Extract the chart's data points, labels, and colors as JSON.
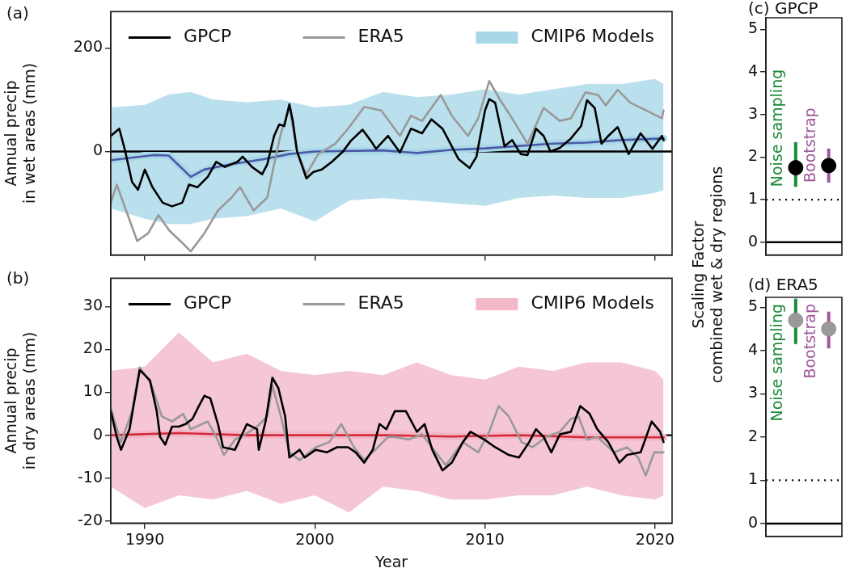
{
  "chart_data": [
    {
      "type": "line",
      "title": "(a)",
      "ylabel": "Annual precip\nin wet areas (mm)",
      "xlim": [
        1988,
        2021
      ],
      "xticks": [
        1990,
        2000,
        2010,
        2020
      ],
      "ylim": [
        -200,
        270
      ],
      "yticks": [
        0,
        200
      ],
      "tick_labels": "y",
      "grid": false,
      "legend": "top",
      "ref_lines": [
        {
          "axis": "y",
          "value": 0,
          "color": "#000000"
        }
      ],
      "series": [
        {
          "name": "GPCP",
          "color": "#000000",
          "x": [
            1988.0,
            1988.5,
            1988.85,
            1989.25,
            1989.6,
            1990.0,
            1990.45,
            1991.05,
            1991.6,
            1992.2,
            1992.6,
            1993.1,
            1993.7,
            1994.2,
            1994.7,
            1995.45,
            1995.75,
            1996.3,
            1996.9,
            1997.2,
            1997.6,
            1997.9,
            1998.2,
            1998.5,
            1998.7,
            1998.95,
            1999.5,
            1999.9,
            2000.4,
            2001.0,
            2001.65,
            2002.1,
            2002.8,
            2003.3,
            2003.6,
            2004.3,
            2005.0,
            2005.65,
            2006.3,
            2006.85,
            2007.5,
            2008.05,
            2008.45,
            2009.1,
            2009.5,
            2010.0,
            2010.25,
            2010.6,
            2011.15,
            2011.6,
            2012.1,
            2012.5,
            2013.0,
            2013.45,
            2013.85,
            2014.4,
            2015.05,
            2015.65,
            2016.0,
            2016.45,
            2016.85,
            2017.25,
            2017.8,
            2018.45,
            2019.15,
            2019.85,
            2020.4,
            2020.5
          ],
          "values": [
            30,
            44,
            0,
            -59,
            -74,
            -35,
            -69,
            -99,
            -106,
            -99,
            -64,
            -69,
            -49,
            -20,
            -30,
            -20,
            -10,
            -30,
            -44,
            -25,
            30,
            52,
            49,
            91,
            59,
            0,
            -52,
            -40,
            -35,
            -20,
            0,
            20,
            42,
            20,
            5,
            30,
            -2,
            44,
            35,
            62,
            44,
            10,
            -15,
            -32,
            -10,
            79,
            101,
            94,
            10,
            22,
            -5,
            -7,
            44,
            30,
            0,
            7,
            25,
            49,
            99,
            84,
            15,
            30,
            47,
            -5,
            35,
            5,
            30,
            22
          ]
        },
        {
          "name": "ERA5",
          "color": "#999999",
          "x": [
            1988.0,
            1988.35,
            1988.9,
            1989.55,
            1990.2,
            1990.8,
            1991.45,
            1992.25,
            1992.7,
            1993.5,
            1994.3,
            1995.1,
            1995.6,
            1996.4,
            1997.2,
            1997.6,
            1998.0,
            1998.5,
            1998.95,
            1999.5,
            2000.2,
            2001.2,
            2001.95,
            2002.9,
            2003.9,
            2005.0,
            2005.65,
            2006.3,
            2007.4,
            2008.05,
            2009.0,
            2009.6,
            2010.25,
            2010.9,
            2011.5,
            2012.5,
            2013.45,
            2014.4,
            2015.05,
            2015.9,
            2016.65,
            2017.1,
            2017.8,
            2018.55,
            2019.5,
            2020.4,
            2020.5
          ],
          "values": [
            -99,
            -64,
            -114,
            -173,
            -158,
            -123,
            -153,
            -178,
            -193,
            -158,
            -114,
            -89,
            -69,
            -114,
            -89,
            -25,
            35,
            86,
            0,
            -44,
            -5,
            15,
            44,
            86,
            79,
            30,
            69,
            59,
            109,
            69,
            30,
            64,
            136,
            99,
            69,
            15,
            84,
            59,
            64,
            114,
            109,
            89,
            119,
            94,
            79,
            64,
            79
          ]
        },
        {
          "name": "CMIP6 Models",
          "color": "#a8d8e8",
          "x": [
            1988,
            1990,
            1991.4,
            1992.7,
            1994,
            1996,
            1998,
            2000,
            2002,
            2004,
            2006,
            2008,
            2010,
            2012,
            2014,
            2016,
            2018,
            2020,
            2020.5
          ],
          "values": [
            -17,
            -8,
            -8,
            -49,
            -30,
            -20,
            -8,
            0,
            1,
            2,
            -3,
            3,
            6,
            10,
            15,
            17,
            22,
            24,
            25
          ],
          "lower": [
            -110,
            -130,
            -140,
            -140,
            -130,
            -125,
            -110,
            -135,
            -95,
            -90,
            -95,
            -100,
            -105,
            -90,
            -85,
            -90,
            -90,
            -80,
            -75
          ],
          "upper": [
            85,
            90,
            110,
            115,
            100,
            95,
            100,
            85,
            90,
            115,
            105,
            110,
            120,
            110,
            120,
            130,
            130,
            140,
            130
          ]
        },
        {
          "color": "#4a5aa8",
          "x": [
            1988,
            1990.5,
            1991.4,
            1992.7,
            1993.5,
            1995,
            1997,
            1998.5,
            2000,
            2004,
            2006,
            2008,
            2010,
            2014,
            2016,
            2018,
            2020.5
          ],
          "values": [
            -17,
            -7,
            -8,
            -49,
            -35,
            -25,
            -15,
            -5,
            0,
            2,
            -3,
            3,
            6,
            15,
            17,
            22,
            25
          ]
        }
      ]
    },
    {
      "type": "line",
      "title": "(b)",
      "xlabel": "Year",
      "ylabel": "Annual precip\nin dry areas (mm)",
      "xlim": [
        1988,
        2021
      ],
      "xticks": [
        1990,
        2000,
        2010,
        2020
      ],
      "ylim": [
        -20.5,
        36.6
      ],
      "yticks": [
        -20,
        -10,
        0,
        10,
        20,
        30
      ],
      "grid": false,
      "legend": "top",
      "ref_lines": [
        {
          "axis": "y",
          "value": 0,
          "color": "#000000"
        }
      ],
      "series": [
        {
          "name": "GPCP",
          "color": "#000000",
          "x": [
            1988.0,
            1988.35,
            1988.6,
            1989.1,
            1989.7,
            1990.3,
            1990.7,
            1990.9,
            1991.2,
            1991.6,
            1992.0,
            1992.4,
            1992.8,
            1993.1,
            1993.5,
            1993.85,
            1994.3,
            1994.6,
            1995.3,
            1996.0,
            1996.6,
            1996.7,
            1997.1,
            1997.5,
            1997.85,
            1998.25,
            1998.5,
            1999.1,
            1999.4,
            2000.05,
            2000.7,
            2001.3,
            2001.95,
            2002.4,
            2002.9,
            2003.4,
            2003.8,
            2004.2,
            2004.7,
            2005.35,
            2006.0,
            2006.45,
            2006.9,
            2007.5,
            2008.05,
            2008.7,
            2009.15,
            2009.95,
            2010.6,
            2011.4,
            2012.0,
            2012.6,
            2013.0,
            2013.45,
            2013.9,
            2014.4,
            2015.05,
            2015.6,
            2016.15,
            2016.6,
            2017.25,
            2017.9,
            2018.35,
            2019.15,
            2019.8,
            2020.3,
            2020.5
          ],
          "values": [
            5.6,
            -0.4,
            -3.4,
            1.4,
            15.2,
            12.8,
            5.6,
            -0.4,
            -2.2,
            2,
            2,
            2.6,
            3.8,
            6.2,
            9.2,
            8.6,
            2.6,
            -2.8,
            -3.4,
            2.6,
            1.4,
            -3.4,
            3.2,
            13.4,
            11,
            4.4,
            -5.2,
            -3.4,
            -5.2,
            -3.4,
            -4,
            -2.8,
            -2.8,
            -4,
            -6.4,
            -3.4,
            2.6,
            1.4,
            5.6,
            5.6,
            0.8,
            2.6,
            -3.4,
            -8.2,
            -6.4,
            -1.6,
            0.8,
            -1,
            -2.8,
            -4.6,
            -5.2,
            -1.6,
            1.4,
            -0.4,
            -4,
            0.2,
            0.8,
            6.8,
            5,
            1.4,
            -1.6,
            -6.4,
            -4.6,
            -4,
            3.2,
            0.8,
            -1.6
          ]
        },
        {
          "name": "ERA5",
          "color": "#999999",
          "x": [
            1988.0,
            1988.6,
            1989.25,
            1989.7,
            1990.35,
            1991.0,
            1991.6,
            1992.25,
            1992.7,
            1993.7,
            1994.2,
            1994.65,
            1995.3,
            1995.9,
            1996.6,
            1997.2,
            1997.5,
            1998.0,
            1998.5,
            1999.1,
            2000.05,
            2000.85,
            2001.55,
            2002.3,
            2002.9,
            2003.7,
            2004.3,
            2004.7,
            2005.5,
            2006.3,
            2007.1,
            2007.7,
            2008.7,
            2009.6,
            2010.25,
            2010.8,
            2011.4,
            2012.15,
            2012.8,
            2013.6,
            2014.4,
            2015.05,
            2015.5,
            2016.0,
            2016.6,
            2017.6,
            2018.35,
            2019.0,
            2019.45,
            2019.95,
            2020.5
          ],
          "values": [
            6.2,
            -1.6,
            5.6,
            15.8,
            12.2,
            4.4,
            3.2,
            5,
            1.4,
            3.2,
            -0.4,
            -4.6,
            -1,
            0.2,
            2,
            4.4,
            11.6,
            4.4,
            -4,
            -5.8,
            -2.8,
            -1.6,
            2.6,
            -2.8,
            -5.8,
            -2.8,
            -0.4,
            -0.4,
            -1,
            0.2,
            -4,
            -7,
            -1.6,
            -4,
            0.8,
            6.8,
            4.4,
            -1.6,
            -2.8,
            -0.4,
            0.8,
            3.8,
            4.4,
            -1,
            -0.4,
            -4,
            -2.8,
            -5.2,
            -9.4,
            -4,
            -4
          ]
        },
        {
          "name": "CMIP6 Models",
          "color": "#f2b8c8",
          "x": [
            1988,
            1990,
            1992,
            1994,
            1996,
            1998,
            2000,
            2002,
            2004,
            2006,
            2008,
            2010,
            2012,
            2014,
            2016,
            2018,
            2020,
            2020.5
          ],
          "values": [
            0,
            0.2,
            0.5,
            0.3,
            0,
            0,
            0,
            0,
            0,
            0,
            -0.3,
            -0.2,
            0,
            -0.3,
            -0.5,
            -0.5,
            -0.5,
            -0.5
          ],
          "lower": [
            -12,
            -17,
            -14,
            -15,
            -13,
            -16,
            -14,
            -18,
            -12,
            -13,
            -15,
            -15,
            -14,
            -14,
            -12,
            -14,
            -15,
            -14
          ],
          "upper": [
            15,
            16,
            24,
            17,
            19,
            15,
            14,
            15,
            14,
            17,
            14,
            13,
            16,
            15,
            17,
            17,
            15,
            13
          ]
        },
        {
          "color": "#d62a3a",
          "x": [
            1988,
            1992,
            1996,
            2000,
            2004,
            2008,
            2012,
            2016,
            2020.5
          ],
          "values": [
            0,
            0.5,
            0,
            0,
            0,
            -0.3,
            0,
            -0.5,
            -0.5
          ]
        }
      ]
    },
    {
      "type": "scatter",
      "title": "(c) GPCP",
      "ylabel": "Scaling Factor\ncombined wet & dry regions",
      "categories": [
        null,
        null
      ],
      "ylim": [
        -0.3,
        5.27
      ],
      "yticks": [
        0,
        1,
        2,
        3,
        4,
        5
      ],
      "tick_labels": "y",
      "grid": false,
      "marker": "circle",
      "ref_lines": [
        {
          "axis": "y",
          "value": 1,
          "color": "#000000",
          "line_style": "dotted"
        },
        {
          "axis": "y",
          "value": 0,
          "color": "#000000"
        }
      ],
      "series": [
        {
          "name": "Noise sampling",
          "color": "#1e8c3c",
          "colors": [
            "#000000",
            "#000000"
          ],
          "values": [
            1.75,
            null
          ],
          "errors": [
            [
              1.3,
              2.35
            ],
            null
          ]
        },
        {
          "name": "Bootstrap",
          "color": "#a05a9c",
          "colors": [
            "#000000",
            "#000000"
          ],
          "values": [
            null,
            1.8
          ],
          "errors": [
            null,
            [
              1.4,
              2.2
            ]
          ]
        }
      ]
    },
    {
      "type": "scatter",
      "title": "(d) ERA5",
      "categories": [
        null,
        null
      ],
      "ylim": [
        -0.3,
        5.23
      ],
      "yticks": [
        0,
        1,
        2,
        3,
        4,
        5
      ],
      "tick_labels": "y",
      "grid": false,
      "marker": "circle",
      "ref_lines": [
        {
          "axis": "y",
          "value": 1,
          "color": "#000000",
          "line_style": "dotted"
        },
        {
          "axis": "y",
          "value": 0,
          "color": "#000000"
        }
      ],
      "series": [
        {
          "name": "Noise sampling",
          "color": "#1e8c3c",
          "colors": [
            "#999999",
            "#999999"
          ],
          "values": [
            4.7,
            null
          ],
          "errors": [
            [
              4.15,
              5.2
            ],
            null
          ]
        },
        {
          "name": "Bootstrap",
          "color": "#a05a9c",
          "colors": [
            "#999999",
            "#999999"
          ],
          "values": [
            null,
            4.5
          ],
          "errors": [
            null,
            [
              4.05,
              4.9
            ]
          ]
        }
      ]
    }
  ]
}
